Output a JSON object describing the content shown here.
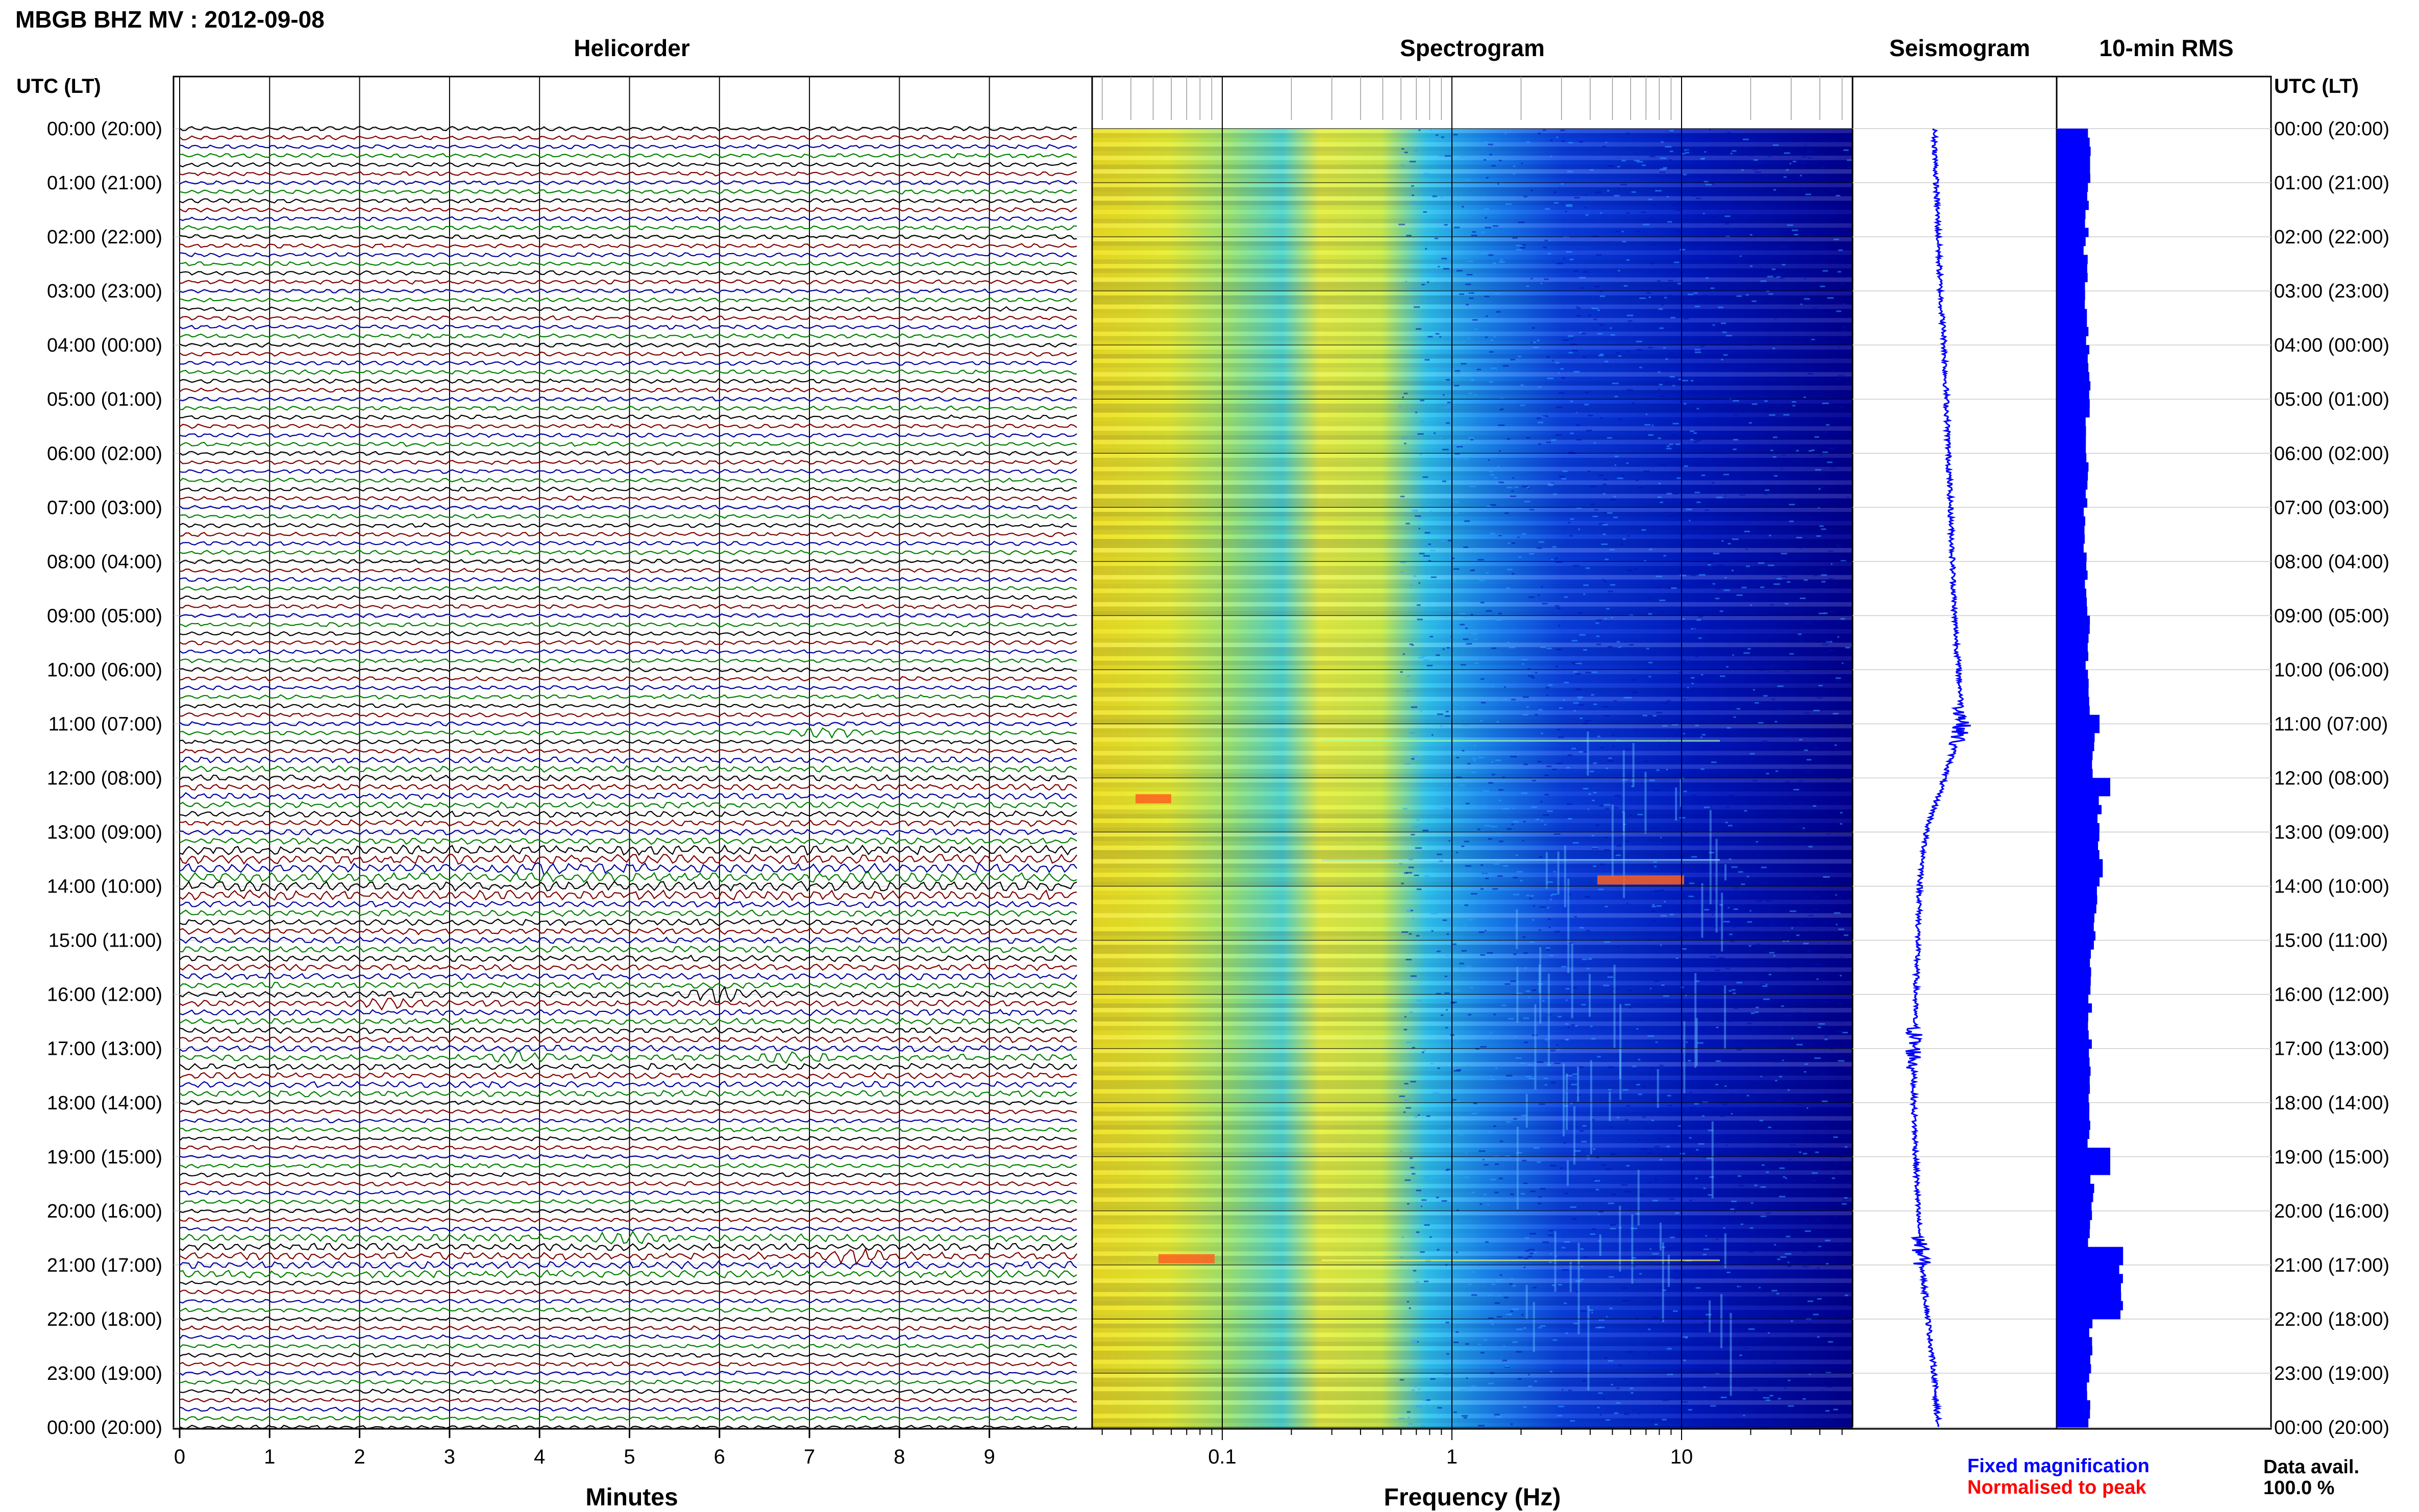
{
  "station_title": "MBGB BHZ MV : 2012-09-08",
  "panels": {
    "helicorder": "Helicorder",
    "spectrogram": "Spectrogram",
    "seismogram": "Seismogram",
    "rms": "10-min RMS"
  },
  "time_header_left": "UTC (LT)",
  "time_header_right": "UTC (LT)",
  "time_labels": [
    "00:00 (20:00)",
    "01:00 (21:00)",
    "02:00 (22:00)",
    "03:00 (23:00)",
    "04:00 (00:00)",
    "05:00 (01:00)",
    "06:00 (02:00)",
    "07:00 (03:00)",
    "08:00 (04:00)",
    "09:00 (05:00)",
    "10:00 (06:00)",
    "11:00 (07:00)",
    "12:00 (08:00)",
    "13:00 (09:00)",
    "14:00 (10:00)",
    "15:00 (11:00)",
    "16:00 (12:00)",
    "17:00 (13:00)",
    "18:00 (14:00)",
    "19:00 (15:00)",
    "20:00 (16:00)",
    "21:00 (17:00)",
    "22:00 (18:00)",
    "23:00 (19:00)",
    "00:00 (20:00)"
  ],
  "legend": {
    "fixed": "Fixed magnification",
    "normalised": "Normalised to peak",
    "fixed_color": "#0000ff",
    "normalised_color": "#ff0000"
  },
  "data_avail": {
    "label": "Data avail.",
    "value": "100.0 %"
  },
  "colors": {
    "trace_cycle": [
      "#000000",
      "#800000",
      "#0000a0",
      "#008000"
    ],
    "seismogram": "#0000ff",
    "rms": "#0000ff",
    "spectrogram_colormap": [
      "#00007f",
      "#0000ff",
      "#00a0ff",
      "#00ffff",
      "#7fff7f",
      "#ffff00",
      "#ff7f00",
      "#ff0000"
    ]
  },
  "chart_data": [
    {
      "type": "line",
      "title": "Helicorder",
      "xlabel": "Minutes",
      "x_ticks": [
        "0",
        "1",
        "2",
        "3",
        "4",
        "5",
        "6",
        "7",
        "8",
        "9"
      ],
      "xlim": [
        0,
        10
      ],
      "rows_per_hour": 6,
      "hours": 24,
      "events": [
        {
          "hour": 11.2,
          "minute": 7.2,
          "strength": 0.6
        },
        {
          "hour": 16.0,
          "minute": 6.0,
          "strength": 0.9
        },
        {
          "hour": 16.2,
          "minute": 2.3,
          "strength": 0.5
        },
        {
          "hour": 17.1,
          "minute": 3.8,
          "strength": 0.6
        },
        {
          "hour": 17.1,
          "minute": 6.8,
          "strength": 0.5
        },
        {
          "hour": 20.5,
          "minute": 5.0,
          "strength": 0.6
        },
        {
          "hour": 20.8,
          "minute": 7.5,
          "strength": 0.9
        },
        {
          "hour": 13.6,
          "minute": 4.0,
          "strength": 0.4
        }
      ]
    },
    {
      "type": "heatmap",
      "title": "Spectrogram",
      "xlabel": "Frequency (Hz)",
      "x_scale": "log",
      "xlim": [
        0.01,
        50
      ],
      "x_ticks": [
        "0.1",
        "1",
        "10"
      ]
    },
    {
      "type": "line",
      "title": "Seismogram",
      "description_values_hourly_offset": [
        0.4,
        0.41,
        0.42,
        0.43,
        0.45,
        0.46,
        0.47,
        0.48,
        0.49,
        0.5,
        0.52,
        0.54,
        0.45,
        0.36,
        0.33,
        0.32,
        0.31,
        0.3,
        0.3,
        0.31,
        0.32,
        0.34,
        0.37,
        0.4,
        0.42
      ]
    },
    {
      "type": "bar",
      "title": "10-min RMS",
      "hourly_values": [
        0.3,
        0.28,
        0.27,
        0.28,
        0.3,
        0.29,
        0.28,
        0.27,
        0.28,
        0.29,
        0.3,
        0.35,
        0.4,
        0.38,
        0.36,
        0.33,
        0.31,
        0.3,
        0.3,
        0.33,
        0.31,
        0.6,
        0.32,
        0.3,
        0.29
      ],
      "peaks": [
        {
          "hour": 12.1,
          "value": 0.5
        },
        {
          "hour": 13.6,
          "value": 0.43
        },
        {
          "hour": 19.0,
          "value": 0.5
        },
        {
          "hour": 20.8,
          "value": 0.62
        },
        {
          "hour": 10.9,
          "value": 0.4
        }
      ]
    }
  ]
}
